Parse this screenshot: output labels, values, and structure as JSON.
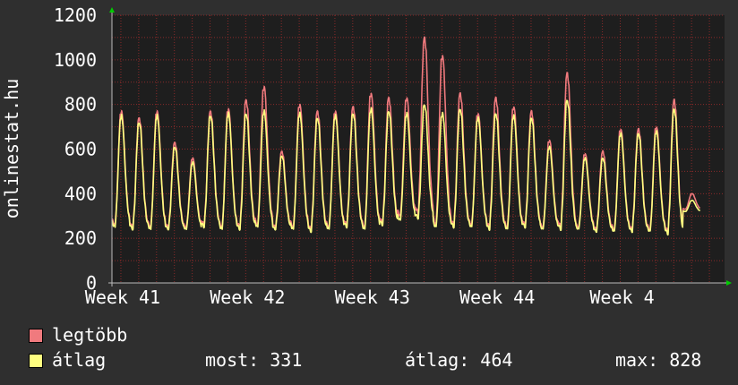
{
  "chart_data": {
    "type": "line",
    "ylabel": "onlinestat.hu",
    "ylim": [
      0,
      1200
    ],
    "yticks": [
      0,
      200,
      400,
      600,
      800,
      1000,
      1200
    ],
    "xtick_labels": [
      "Week 41",
      "Week 42",
      "Week 43",
      "Week 44",
      "Week 4"
    ],
    "grid": true,
    "days": 35,
    "series": [
      {
        "name": "legtöbb",
        "color": "#f07a7e",
        "daily_peaks": [
          770,
          740,
          770,
          630,
          560,
          770,
          780,
          820,
          880,
          590,
          800,
          770,
          770,
          790,
          850,
          830,
          830,
          1100,
          1020,
          850,
          760,
          830,
          790,
          770,
          640,
          940,
          580,
          590,
          690,
          690,
          700,
          820,
          400
        ],
        "daily_troughs": [
          260,
          250,
          250,
          250,
          250,
          260,
          250,
          250,
          260,
          250,
          250,
          240,
          250,
          260,
          250,
          270,
          300,
          310,
          260,
          260,
          260,
          250,
          250,
          260,
          250,
          250,
          250,
          240,
          240,
          240,
          240,
          230,
          330
        ]
      },
      {
        "name": "átlag",
        "color": "#ffff80",
        "daily_peaks": [
          750,
          720,
          750,
          610,
          540,
          750,
          760,
          760,
          770,
          570,
          760,
          740,
          750,
          760,
          780,
          770,
          760,
          800,
          760,
          780,
          740,
          760,
          750,
          740,
          610,
          820,
          560,
          560,
          670,
          670,
          680,
          780,
          370
        ],
        "daily_troughs": [
          250,
          240,
          240,
          240,
          240,
          250,
          240,
          240,
          250,
          240,
          240,
          230,
          240,
          250,
          240,
          260,
          280,
          290,
          250,
          250,
          250,
          240,
          240,
          250,
          240,
          240,
          240,
          230,
          230,
          230,
          230,
          220,
          320
        ]
      }
    ]
  },
  "legend": {
    "max_label": "legtöbb",
    "avg_label": "átlag",
    "now": "most: 331",
    "average": "átlag: 464",
    "maximum": "max: 828"
  },
  "colors": {
    "background": "#2f2f2f",
    "plot_background": "#1e1e1e",
    "grid": "#8a2a2a",
    "axis_arrow": "#00cc00"
  }
}
